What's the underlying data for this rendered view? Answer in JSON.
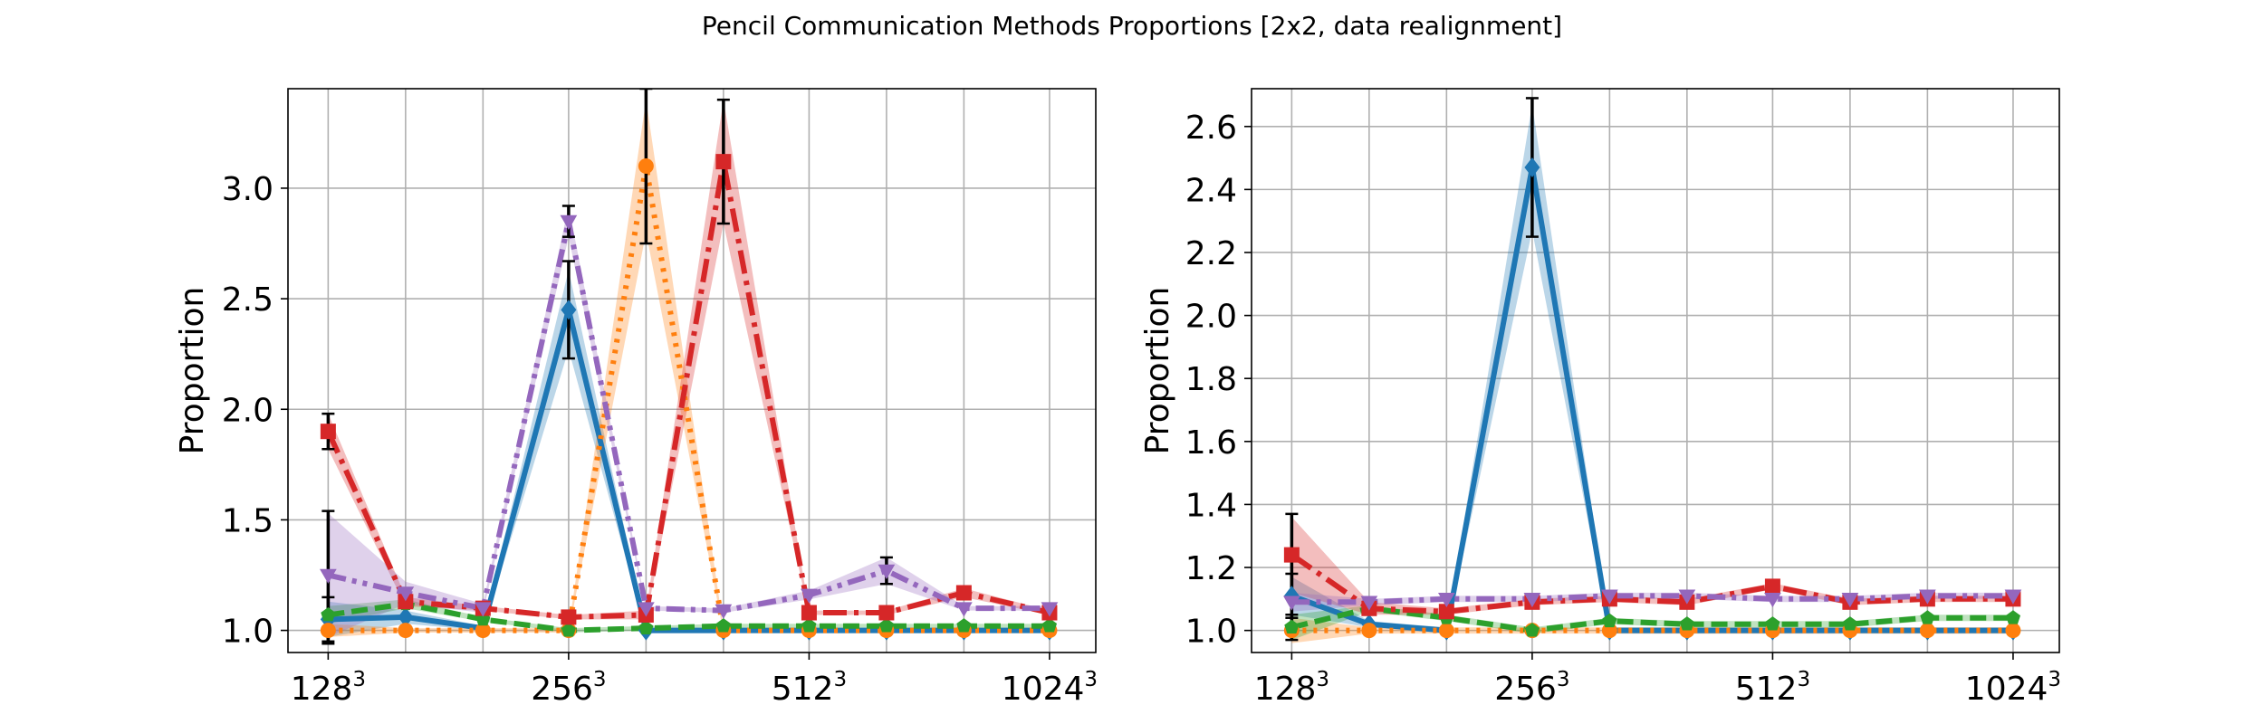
{
  "figure": {
    "title": "Pencil Communication Methods Proportions [2x2, data realignment]"
  },
  "colors": {
    "blue": "#1f77b4",
    "orange": "#ff7f0e",
    "green": "#2ca02c",
    "red": "#d62728",
    "purple": "#9467bd",
    "errorbar": "#000000"
  },
  "chart_data": [
    {
      "type": "line",
      "title": "",
      "xlabel": "",
      "ylabel": "Proportion",
      "x": [
        128,
        160,
        200,
        256,
        320,
        400,
        512,
        640,
        800,
        1024
      ],
      "xticks": [
        {
          "value": 128,
          "base": "128",
          "exp": "3"
        },
        {
          "value": 256,
          "base": "256",
          "exp": "3"
        },
        {
          "value": 512,
          "base": "512",
          "exp": "3"
        },
        {
          "value": 1024,
          "base": "1024",
          "exp": "3"
        }
      ],
      "xscale": "log",
      "xlim": [
        114,
        1170
      ],
      "yticks": [
        "1.0",
        "1.5",
        "2.0",
        "2.5",
        "3.0"
      ],
      "ylim": [
        0.9,
        3.45
      ],
      "grid": true,
      "legend": "none",
      "series": [
        {
          "color_key": "blue",
          "linestyle": "solid",
          "marker": "diamond",
          "values": [
            1.05,
            1.06,
            1.01,
            2.45,
            1.0,
            1.0,
            1.0,
            1.0,
            1.0,
            1.0
          ],
          "band": [
            0.08,
            0.03,
            0.01,
            0.18,
            0.01,
            0.01,
            0.01,
            0.01,
            0.01,
            0.01
          ],
          "err": [
            0.1,
            0,
            0,
            0.22,
            0,
            0,
            0,
            0,
            0,
            0
          ]
        },
        {
          "color_key": "orange",
          "linestyle": "dotted",
          "marker": "circle",
          "values": [
            1.0,
            1.0,
            1.0,
            1.0,
            3.1,
            1.0,
            1.0,
            1.0,
            1.0,
            1.0
          ],
          "band": [
            0.03,
            0.01,
            0.01,
            0.01,
            0.3,
            0.01,
            0.01,
            0.01,
            0.01,
            0.01
          ],
          "err": [
            0,
            0,
            0,
            0,
            0.35,
            0,
            0,
            0,
            0,
            0
          ]
        },
        {
          "color_key": "green",
          "linestyle": "dashed",
          "marker": "pentagon",
          "values": [
            1.07,
            1.12,
            1.05,
            1.0,
            1.01,
            1.02,
            1.02,
            1.02,
            1.02,
            1.02
          ],
          "band": [
            0.04,
            0.02,
            0.01,
            0.01,
            0.01,
            0.01,
            0.01,
            0.01,
            0.01,
            0.01
          ],
          "err": [
            0,
            0,
            0,
            0,
            0,
            0,
            0,
            0,
            0,
            0
          ]
        },
        {
          "color_key": "red",
          "linestyle": "dashdot",
          "marker": "square",
          "values": [
            1.9,
            1.13,
            1.1,
            1.06,
            1.07,
            3.12,
            1.08,
            1.08,
            1.17,
            1.08
          ],
          "band": [
            0.08,
            0.02,
            0.01,
            0.01,
            0.02,
            0.28,
            0.01,
            0.01,
            0.02,
            0.01
          ],
          "err": [
            0.08,
            0,
            0,
            0,
            0,
            0.28,
            0,
            0,
            0,
            0
          ]
        },
        {
          "color_key": "purple",
          "linestyle": "dashdotdot",
          "marker": "triangle-down",
          "values": [
            1.25,
            1.17,
            1.1,
            2.85,
            1.1,
            1.09,
            1.16,
            1.27,
            1.1,
            1.1
          ],
          "band": [
            0.28,
            0.05,
            0.02,
            0.07,
            0.01,
            0.01,
            0.02,
            0.06,
            0.01,
            0.01
          ],
          "err": [
            0,
            0,
            0,
            0.07,
            0,
            0,
            0,
            0.06,
            0,
            0
          ]
        }
      ],
      "extra_errorbars": [
        {
          "x": 128,
          "low": 0.94,
          "high": 1.54
        }
      ]
    },
    {
      "type": "line",
      "title": "",
      "xlabel": "",
      "ylabel": "Proportion",
      "x": [
        128,
        160,
        200,
        256,
        320,
        400,
        512,
        640,
        800,
        1024
      ],
      "xticks": [
        {
          "value": 128,
          "base": "128",
          "exp": "3"
        },
        {
          "value": 256,
          "base": "256",
          "exp": "3"
        },
        {
          "value": 512,
          "base": "512",
          "exp": "3"
        },
        {
          "value": 1024,
          "base": "1024",
          "exp": "3"
        }
      ],
      "xscale": "log",
      "xlim": [
        114,
        1170
      ],
      "yticks": [
        "1.0",
        "1.2",
        "1.4",
        "1.6",
        "1.8",
        "2.0",
        "2.2",
        "2.4",
        "2.6"
      ],
      "ylim": [
        0.93,
        2.72
      ],
      "grid": true,
      "legend": "none",
      "series": [
        {
          "color_key": "blue",
          "linestyle": "solid",
          "marker": "diamond",
          "values": [
            1.11,
            1.02,
            1.0,
            2.47,
            1.0,
            1.0,
            1.0,
            1.0,
            1.0,
            1.0
          ],
          "band": [
            0.06,
            0.01,
            0.01,
            0.2,
            0.01,
            0.01,
            0.01,
            0.01,
            0.01,
            0.01
          ],
          "err": [
            0.07,
            0,
            0,
            0.22,
            0,
            0,
            0,
            0,
            0,
            0
          ]
        },
        {
          "color_key": "orange",
          "linestyle": "dotted",
          "marker": "circle",
          "values": [
            1.0,
            1.0,
            1.0,
            1.0,
            1.0,
            1.0,
            1.0,
            1.0,
            1.0,
            1.0
          ],
          "band": [
            0.04,
            0.01,
            0.01,
            0.01,
            0.01,
            0.01,
            0.01,
            0.01,
            0.01,
            0.01
          ],
          "err": [
            0,
            0,
            0,
            0,
            0,
            0,
            0,
            0,
            0,
            0
          ]
        },
        {
          "color_key": "green",
          "linestyle": "dashed",
          "marker": "pentagon",
          "values": [
            1.01,
            1.07,
            1.04,
            1.0,
            1.03,
            1.02,
            1.02,
            1.02,
            1.04,
            1.04
          ],
          "band": [
            0.04,
            0.01,
            0.01,
            0.01,
            0.01,
            0.01,
            0.01,
            0.01,
            0.01,
            0.01
          ],
          "err": [
            0.04,
            0,
            0,
            0,
            0,
            0,
            0,
            0,
            0,
            0
          ]
        },
        {
          "color_key": "red",
          "linestyle": "dashdot",
          "marker": "square",
          "values": [
            1.24,
            1.07,
            1.06,
            1.09,
            1.1,
            1.09,
            1.14,
            1.09,
            1.1,
            1.1
          ],
          "band": [
            0.12,
            0.02,
            0.01,
            0.01,
            0.01,
            0.01,
            0.01,
            0.01,
            0.01,
            0.01
          ],
          "err": [
            0.13,
            0,
            0,
            0,
            0,
            0,
            0,
            0,
            0,
            0
          ]
        },
        {
          "color_key": "purple",
          "linestyle": "dashdotdot",
          "marker": "triangle-down",
          "values": [
            1.09,
            1.09,
            1.1,
            1.1,
            1.11,
            1.11,
            1.1,
            1.1,
            1.11,
            1.11
          ],
          "band": [
            0.03,
            0.01,
            0.01,
            0.01,
            0.01,
            0.01,
            0.01,
            0.01,
            0.01,
            0.01
          ],
          "err": [
            0,
            0,
            0,
            0,
            0,
            0,
            0,
            0,
            0,
            0
          ]
        }
      ],
      "extra_errorbars": []
    }
  ]
}
